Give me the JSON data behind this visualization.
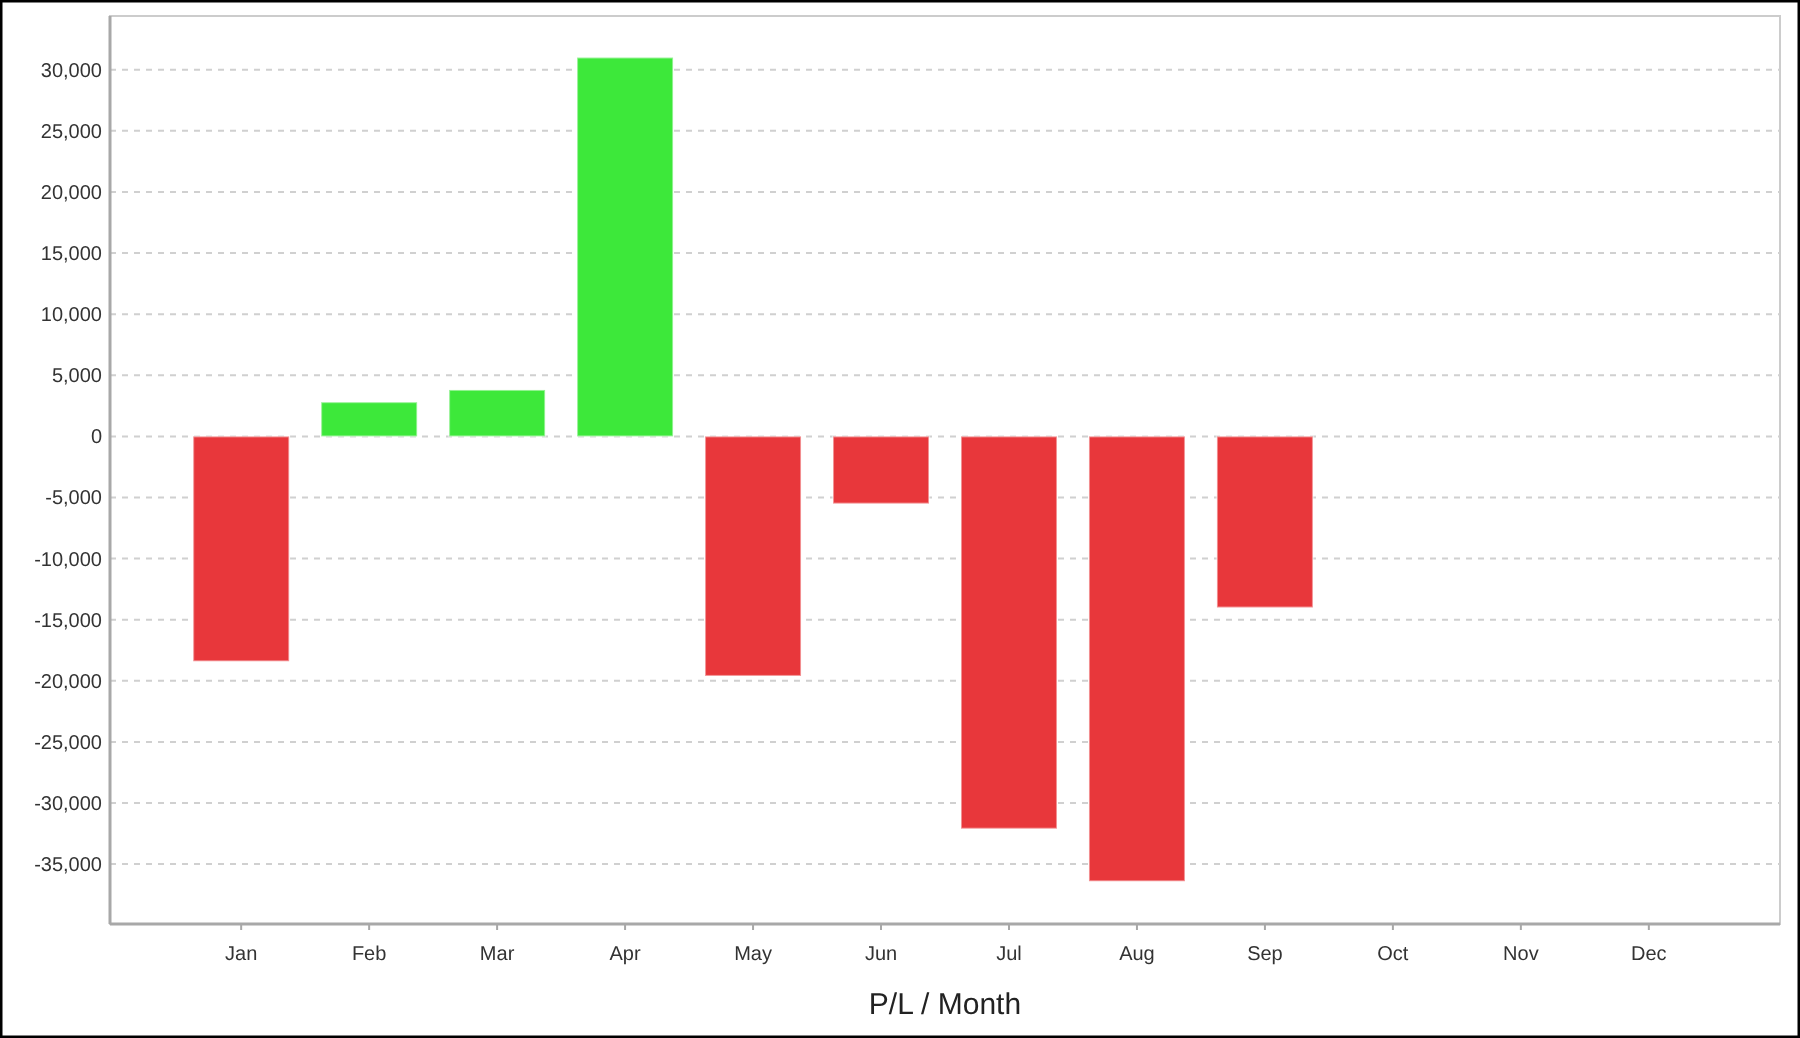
{
  "chart_data": {
    "type": "bar",
    "xlabel": "P/L / Month",
    "categories": [
      "Jan",
      "Feb",
      "Mar",
      "Apr",
      "May",
      "Jun",
      "Jul",
      "Aug",
      "Sep",
      "Oct",
      "Nov",
      "Dec"
    ],
    "values": [
      -18400,
      2800,
      3800,
      31000,
      -19600,
      -5500,
      -32100,
      -36400,
      -14000,
      null,
      null,
      null
    ],
    "colors": [
      "#e8373b",
      "#3de83a",
      "#3de83a",
      "#3de83a",
      "#e8373b",
      "#e8373b",
      "#e8373b",
      "#e8373b",
      "#e8373b",
      null,
      null,
      null
    ],
    "ylim": [
      -39900,
      34400
    ],
    "yticks": [
      {
        "value": -35000,
        "label": "-35,000"
      },
      {
        "value": -30000,
        "label": "-30,000"
      },
      {
        "value": -25000,
        "label": "-25,000"
      },
      {
        "value": -20000,
        "label": "-20,000"
      },
      {
        "value": -15000,
        "label": "-15,000"
      },
      {
        "value": -10000,
        "label": "-10,000"
      },
      {
        "value": -5000,
        "label": "-5,000"
      },
      0,
      {
        "value": 5000,
        "label": "5,000"
      },
      {
        "value": 10000,
        "label": "10,000"
      },
      {
        "value": 15000,
        "label": "15,000"
      },
      {
        "value": 20000,
        "label": "20,000"
      },
      {
        "value": 25000,
        "label": "25,000"
      },
      {
        "value": 30000,
        "label": "30,000"
      }
    ],
    "grid": "y"
  }
}
